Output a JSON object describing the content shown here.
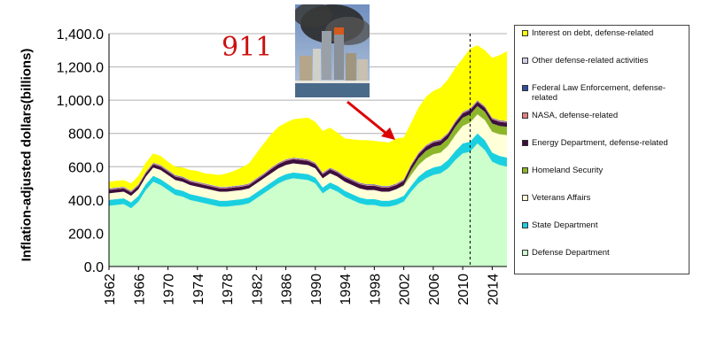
{
  "annotation": {
    "text": "911"
  },
  "colors": {
    "Interest on debt, defense-related": "#ffff00",
    "Other defense-related activities": "#d4d0e8",
    "Federal Law Enforcement, defense-related": "#2e4fa0",
    "NASA, defense-related": "#e08080",
    "Energy Department, defense-related": "#3d0f3d",
    "Homeland Security": "#8db52b",
    "Veterans Affairs": "#ffffd8",
    "State Department": "#1ad0e0",
    "Defense Department": "#ccffcc"
  },
  "chart_data": {
    "type": "area",
    "title": "",
    "xlabel": "",
    "ylabel": "Inflation-adjusted dollars(billions)",
    "ylim": [
      0,
      1400
    ],
    "xlim": [
      1962,
      2016
    ],
    "yticks": [
      "0.0",
      "200.0",
      "400.0",
      "600.0",
      "800.0",
      "1,000.0",
      "1,200.0",
      "1,400.0"
    ],
    "xticks": [
      "1962",
      "1966",
      "1970",
      "1974",
      "1978",
      "1982",
      "1986",
      "1990",
      "1994",
      "1998",
      "2002",
      "2006",
      "2010",
      "2014"
    ],
    "grid": "horizontal",
    "legend": "right",
    "vline_x": 2011,
    "x": [
      1962,
      1963,
      1964,
      1965,
      1966,
      1967,
      1968,
      1969,
      1970,
      1971,
      1972,
      1973,
      1974,
      1975,
      1976,
      1977,
      1978,
      1979,
      1980,
      1981,
      1982,
      1983,
      1984,
      1985,
      1986,
      1987,
      1988,
      1989,
      1990,
      1991,
      1992,
      1993,
      1994,
      1995,
      1996,
      1997,
      1998,
      1999,
      2000,
      2001,
      2002,
      2003,
      2004,
      2005,
      2006,
      2007,
      2008,
      2009,
      2010,
      2011,
      2012,
      2013,
      2014,
      2015,
      2016
    ],
    "legend_order": [
      "Interest on debt, defense-related",
      "Other defense-related activities",
      "Federal Law Enforcement, defense-related",
      "NASA, defense-related",
      "Energy Department, defense-related",
      "Homeland Security",
      "Veterans Affairs",
      "State Department",
      "Defense Department"
    ],
    "series": [
      {
        "name": "Defense Department",
        "values": [
          365,
          370,
          375,
          350,
          390,
          460,
          510,
          490,
          460,
          430,
          420,
          400,
          390,
          380,
          370,
          360,
          360,
          365,
          370,
          380,
          410,
          440,
          470,
          500,
          520,
          530,
          525,
          520,
          500,
          440,
          470,
          450,
          420,
          400,
          380,
          370,
          370,
          360,
          360,
          370,
          390,
          450,
          500,
          530,
          550,
          560,
          590,
          640,
          680,
          690,
          740,
          700,
          630,
          610,
          600
        ]
      },
      {
        "name": "State Department",
        "values": [
          35,
          35,
          35,
          35,
          35,
          35,
          35,
          35,
          35,
          35,
          35,
          35,
          35,
          35,
          35,
          35,
          35,
          35,
          35,
          35,
          35,
          35,
          35,
          35,
          35,
          35,
          35,
          35,
          35,
          35,
          35,
          35,
          35,
          35,
          35,
          35,
          35,
          35,
          35,
          35,
          35,
          35,
          40,
          45,
          45,
          45,
          50,
          55,
          60,
          60,
          60,
          60,
          55,
          55,
          55
        ]
      },
      {
        "name": "Veterans Affairs",
        "values": [
          40,
          40,
          40,
          40,
          40,
          45,
          50,
          55,
          55,
          55,
          55,
          55,
          55,
          55,
          55,
          55,
          55,
          55,
          55,
          55,
          55,
          55,
          55,
          55,
          55,
          55,
          55,
          55,
          55,
          55,
          55,
          55,
          55,
          55,
          55,
          55,
          55,
          55,
          55,
          60,
          60,
          65,
          70,
          75,
          80,
          80,
          85,
          95,
          105,
          115,
          115,
          120,
          125,
          130,
          135
        ]
      },
      {
        "name": "Homeland Security",
        "values": [
          0,
          0,
          0,
          0,
          0,
          0,
          0,
          0,
          0,
          0,
          0,
          0,
          0,
          0,
          0,
          0,
          0,
          0,
          0,
          0,
          0,
          0,
          0,
          0,
          0,
          0,
          0,
          0,
          0,
          0,
          0,
          0,
          0,
          0,
          0,
          0,
          0,
          0,
          0,
          0,
          5,
          30,
          40,
          45,
          45,
          45,
          45,
          50,
          50,
          50,
          50,
          50,
          50,
          50,
          50
        ]
      },
      {
        "name": "Energy Department, defense-related",
        "values": [
          20,
          20,
          20,
          20,
          20,
          20,
          20,
          20,
          20,
          20,
          20,
          20,
          20,
          20,
          20,
          20,
          20,
          20,
          20,
          20,
          20,
          20,
          25,
          25,
          25,
          25,
          25,
          25,
          25,
          25,
          25,
          25,
          25,
          25,
          25,
          25,
          25,
          25,
          25,
          25,
          25,
          25,
          25,
          25,
          25,
          25,
          25,
          25,
          25,
          25,
          25,
          25,
          25,
          25,
          25
        ]
      },
      {
        "name": "NASA, defense-related",
        "values": [
          5,
          5,
          5,
          5,
          5,
          5,
          5,
          5,
          5,
          5,
          5,
          5,
          5,
          5,
          5,
          5,
          5,
          5,
          5,
          5,
          5,
          5,
          5,
          5,
          5,
          5,
          5,
          5,
          5,
          5,
          5,
          5,
          5,
          5,
          5,
          5,
          5,
          5,
          5,
          5,
          5,
          5,
          5,
          5,
          5,
          5,
          5,
          5,
          5,
          5,
          5,
          5,
          5,
          5,
          5
        ]
      },
      {
        "name": "Federal Law Enforcement, defense-related",
        "values": [
          3,
          3,
          3,
          3,
          3,
          3,
          3,
          3,
          3,
          3,
          3,
          3,
          3,
          3,
          3,
          3,
          3,
          3,
          3,
          3,
          3,
          3,
          3,
          3,
          3,
          3,
          3,
          3,
          3,
          3,
          3,
          3,
          3,
          3,
          3,
          3,
          3,
          3,
          3,
          3,
          3,
          3,
          3,
          3,
          3,
          3,
          3,
          3,
          3,
          3,
          3,
          3,
          3,
          3,
          3
        ]
      },
      {
        "name": "Other defense-related activities",
        "values": [
          2,
          2,
          2,
          2,
          2,
          2,
          2,
          2,
          2,
          2,
          2,
          2,
          2,
          2,
          2,
          2,
          2,
          2,
          2,
          2,
          2,
          2,
          2,
          2,
          2,
          2,
          2,
          2,
          2,
          2,
          2,
          2,
          2,
          2,
          2,
          2,
          2,
          2,
          2,
          2,
          2,
          2,
          2,
          2,
          2,
          2,
          2,
          2,
          2,
          2,
          2,
          2,
          2,
          2,
          2
        ]
      },
      {
        "name": "Interest on debt, defense-related",
        "values": [
          40,
          40,
          40,
          45,
          50,
          55,
          55,
          55,
          50,
          50,
          55,
          60,
          65,
          60,
          65,
          70,
          80,
          90,
          105,
          120,
          150,
          180,
          200,
          215,
          220,
          230,
          240,
          250,
          245,
          250,
          240,
          230,
          225,
          240,
          255,
          265,
          260,
          265,
          260,
          270,
          250,
          250,
          270,
          290,
          300,
          310,
          320,
          320,
          320,
          360,
          330,
          335,
          360,
          390,
          420
        ]
      }
    ]
  }
}
